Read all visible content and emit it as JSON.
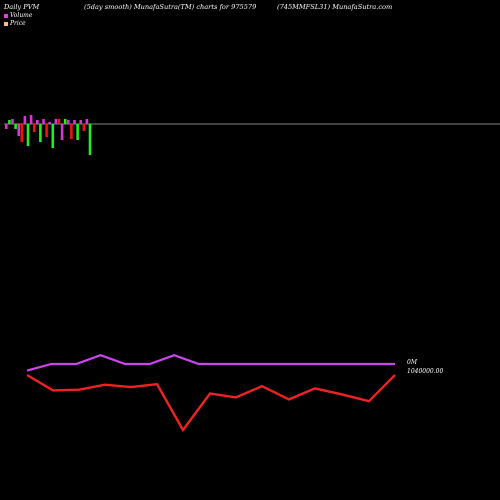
{
  "header": {
    "left": "Daily PVM",
    "middle": "(5day smooth) MunafaSutra(TM) charts for 975579",
    "right": "(745MMFSL31) MunafaSutra.com"
  },
  "legend": {
    "volume_label": "Volume",
    "price_label": "Price",
    "volume_color": "#e040e0",
    "price_color": "#f5c080"
  },
  "labels": {
    "volume_value": "0M",
    "price_value": "1040000.00"
  },
  "colors": {
    "background": "#000000",
    "up": "#22ee22",
    "down": "#ee1111",
    "neutral": "#dd33dd",
    "volume_line": "#cc44ee",
    "price_line": "#ee2222",
    "baseline": "#888888"
  },
  "chart_data": {
    "type": "bar",
    "xlabel": "",
    "ylabel": "",
    "bars": {
      "values": [
        -5,
        4,
        5,
        -5,
        -12,
        -18,
        8,
        -22,
        9,
        -8,
        4,
        -18,
        5,
        -13,
        2,
        -24,
        5,
        5,
        -16,
        5,
        4,
        -15,
        4,
        -16,
        4,
        -7,
        5,
        -31
      ],
      "colors": [
        "m",
        "g",
        "m",
        "g",
        "m",
        "r",
        "m",
        "g",
        "m",
        "r",
        "m",
        "g",
        "m",
        "r",
        "m",
        "g",
        "m",
        "r",
        "m",
        "g",
        "m",
        "r",
        "m",
        "g",
        "m",
        "r",
        "m",
        "g"
      ]
    },
    "series": [
      {
        "name": "Volume",
        "values": [
          0.4,
          1.0,
          1.0,
          1.8,
          1.0,
          1.0,
          1.8,
          1.0,
          1.0,
          1.0,
          1.0,
          1.0,
          1.0,
          1.0,
          1.0,
          1.0
        ]
      },
      {
        "name": "Price",
        "values": [
          1040000,
          1039300,
          1039330,
          1039560,
          1039450,
          1039580,
          1037500,
          1039160,
          1038980,
          1039490,
          1038890,
          1039390,
          1039120,
          1038810,
          1040000
        ]
      }
    ]
  }
}
